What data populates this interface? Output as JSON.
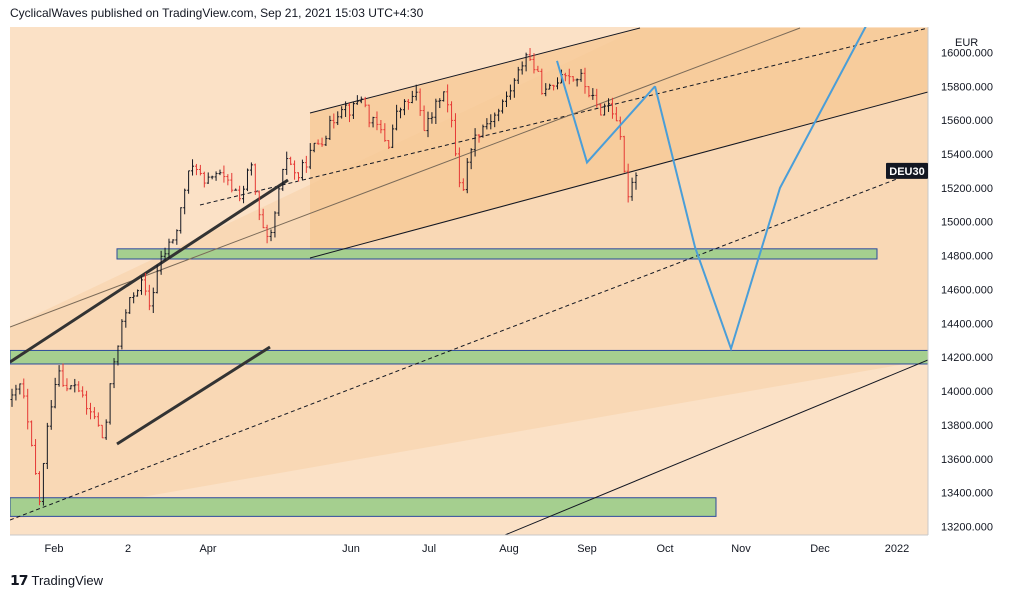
{
  "header": {
    "text": "CyclicalWaves published on TradingView.com, Sep 21, 2021 15:03 UTC+4:30"
  },
  "footer": {
    "logo_icon": "tradingview-logo-icon",
    "brand": "TradingView"
  },
  "chart_data": {
    "type": "candlestick",
    "currency": "EUR",
    "symbol": "DEU30",
    "current_price": 15300,
    "ylim": [
      13150,
      16150
    ],
    "y_ticks": [
      13200,
      13400,
      13600,
      13800,
      14000,
      14200,
      14400,
      14600,
      14800,
      15000,
      15200,
      15400,
      15600,
      15800,
      16000
    ],
    "x_labels": [
      "Feb",
      "2",
      "Apr",
      "Jun",
      "Jul",
      "Aug",
      "Sep",
      "Oct",
      "Nov",
      "Dec",
      "2022"
    ],
    "colors": {
      "up": "#131722",
      "down": "#e53935",
      "projection": "#4a9ed8",
      "zone_fill": "#a5cf8f",
      "zone_border": "#2b4a9c",
      "band_fill": "#f7c996",
      "background": "#fbe1c6"
    },
    "price_path": [
      13950,
      14050,
      13700,
      13350,
      13850,
      14150,
      14000,
      14050,
      13900,
      13850,
      13700,
      14150,
      14400,
      14550,
      14650,
      14500,
      14750,
      14850,
      14950,
      15250,
      15350,
      15200,
      15300,
      15250,
      15200,
      15150,
      15350,
      15000,
      14850,
      15150,
      15400,
      15250,
      15350,
      15450,
      15500,
      15600,
      15700,
      15650,
      15750,
      15600,
      15550,
      15450,
      15650,
      15700,
      15750,
      15550,
      15650,
      15800,
      15550,
      15150,
      15450,
      15550,
      15600,
      15650,
      15750,
      15850,
      16000,
      15900,
      15750,
      15800,
      15900,
      15850,
      15850,
      15750,
      15650,
      15700,
      15600,
      15150,
      15300
    ],
    "projection_path": [
      [
        15950,
        15350,
        15700,
        15800
      ],
      [
        15800,
        14850,
        14250,
        15200,
        16200
      ]
    ],
    "support_zones": [
      [
        14780,
        14840
      ],
      [
        14160,
        14240
      ],
      [
        13260,
        13370
      ]
    ]
  }
}
